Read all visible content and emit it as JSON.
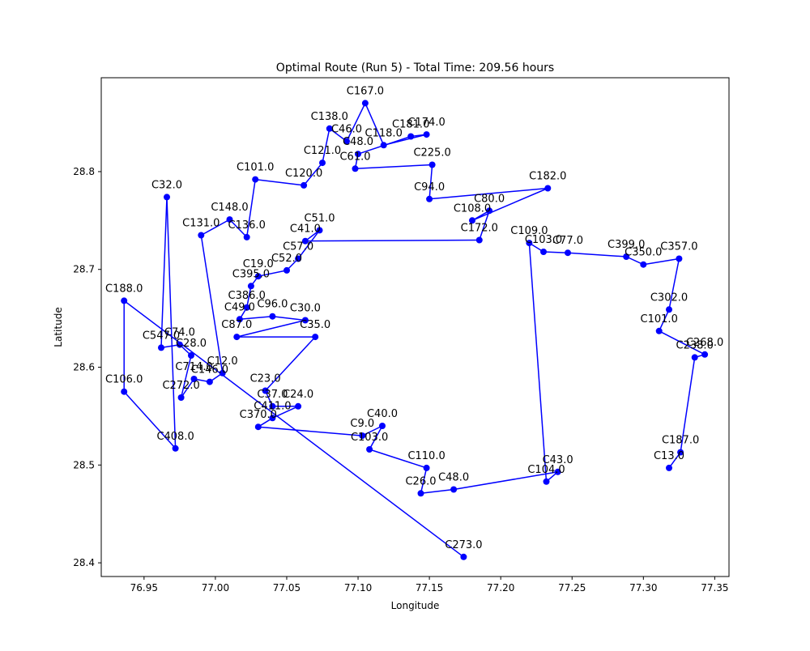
{
  "chart_data": {
    "type": "scatter",
    "title": "Optimal Route (Run 5) - Total Time: 209.56 hours",
    "xlabel": "Longitude",
    "ylabel": "Latitude",
    "xlim": [
      76.92,
      77.36
    ],
    "ylim": [
      28.386,
      28.896
    ],
    "x_ticks": [
      76.95,
      77.0,
      77.05,
      77.1,
      77.15,
      77.2,
      77.25,
      77.3,
      77.35
    ],
    "x_tick_labels": [
      "76.95",
      "77.00",
      "77.05",
      "77.10",
      "77.15",
      "77.20",
      "77.25",
      "77.30",
      "77.35"
    ],
    "y_ticks": [
      28.4,
      28.5,
      28.6,
      28.7,
      28.8
    ],
    "y_tick_labels": [
      "28.4",
      "28.5",
      "28.6",
      "28.7",
      "28.8"
    ],
    "grid": false,
    "legend": "none",
    "series_color": "#0000ff",
    "marker": "filled circle",
    "line": "solid, connects points in route order",
    "points": [
      {
        "label": "C273.0",
        "x": 77.174,
        "y": 28.406
      },
      {
        "label": "C188.0",
        "x": 76.936,
        "y": 28.668
      },
      {
        "label": "C106.0",
        "x": 76.936,
        "y": 28.575
      },
      {
        "label": "C408.0",
        "x": 76.972,
        "y": 28.517
      },
      {
        "label": "C32.0",
        "x": 76.966,
        "y": 28.774
      },
      {
        "label": "C547.0",
        "x": 76.962,
        "y": 28.62
      },
      {
        "label": "C74.0",
        "x": 76.975,
        "y": 28.623
      },
      {
        "label": "C28.0",
        "x": 76.983,
        "y": 28.612
      },
      {
        "label": "C272.0",
        "x": 76.976,
        "y": 28.569
      },
      {
        "label": "C714.0",
        "x": 76.985,
        "y": 28.588
      },
      {
        "label": "C146.0",
        "x": 76.996,
        "y": 28.585
      },
      {
        "label": "C12.0",
        "x": 77.005,
        "y": 28.594
      },
      {
        "label": "C131.0",
        "x": 76.99,
        "y": 28.735
      },
      {
        "label": "C148.0",
        "x": 77.01,
        "y": 28.751
      },
      {
        "label": "C136.0",
        "x": 77.022,
        "y": 28.733
      },
      {
        "label": "C101.0",
        "x": 77.028,
        "y": 28.792
      },
      {
        "label": "C120.0",
        "x": 77.062,
        "y": 28.786
      },
      {
        "label": "C121.0",
        "x": 77.075,
        "y": 28.809
      },
      {
        "label": "C138.0",
        "x": 77.08,
        "y": 28.844
      },
      {
        "label": "C46.0",
        "x": 77.092,
        "y": 28.831
      },
      {
        "label": "C167.0",
        "x": 77.105,
        "y": 28.87
      },
      {
        "label": "C118.0",
        "x": 77.118,
        "y": 28.827
      },
      {
        "label": "C174.0",
        "x": 77.148,
        "y": 28.838
      },
      {
        "label": "C181.0",
        "x": 77.137,
        "y": 28.836
      },
      {
        "label": "C48.0",
        "x": 77.1,
        "y": 28.818
      },
      {
        "label": "C61.0",
        "x": 77.098,
        "y": 28.803
      },
      {
        "label": "C225.0",
        "x": 77.152,
        "y": 28.807
      },
      {
        "label": "C94.0",
        "x": 77.15,
        "y": 28.772
      },
      {
        "label": "C182.0",
        "x": 77.233,
        "y": 28.783
      },
      {
        "label": "C108.0",
        "x": 77.18,
        "y": 28.75
      },
      {
        "label": "C80.0",
        "x": 77.192,
        "y": 28.76
      },
      {
        "label": "C172.0",
        "x": 77.185,
        "y": 28.73
      },
      {
        "label": "C41.0",
        "x": 77.063,
        "y": 28.729
      },
      {
        "label": "C51.0",
        "x": 77.073,
        "y": 28.74
      },
      {
        "label": "C57.0",
        "x": 77.058,
        "y": 28.711
      },
      {
        "label": "C52.0",
        "x": 77.05,
        "y": 28.699
      },
      {
        "label": "C19.0",
        "x": 77.03,
        "y": 28.693
      },
      {
        "label": "C395.0",
        "x": 77.025,
        "y": 28.683
      },
      {
        "label": "C386.0",
        "x": 77.022,
        "y": 28.661
      },
      {
        "label": "C49.0",
        "x": 77.017,
        "y": 28.649
      },
      {
        "label": "C96.0",
        "x": 77.04,
        "y": 28.652
      },
      {
        "label": "C30.0",
        "x": 77.063,
        "y": 28.648
      },
      {
        "label": "C87.0",
        "x": 77.015,
        "y": 28.631
      },
      {
        "label": "C35.0",
        "x": 77.07,
        "y": 28.631
      },
      {
        "label": "C23.0",
        "x": 77.035,
        "y": 28.576
      },
      {
        "label": "C37.0",
        "x": 77.04,
        "y": 28.56
      },
      {
        "label": "C24.0",
        "x": 77.058,
        "y": 28.56
      },
      {
        "label": "C411.0",
        "x": 77.04,
        "y": 28.548
      },
      {
        "label": "C370.0",
        "x": 77.03,
        "y": 28.539
      },
      {
        "label": "C9.0",
        "x": 77.103,
        "y": 28.53
      },
      {
        "label": "C40.0",
        "x": 77.117,
        "y": 28.54
      },
      {
        "label": "C103.0",
        "x": 77.108,
        "y": 28.516
      },
      {
        "label": "C110.0",
        "x": 77.148,
        "y": 28.497
      },
      {
        "label": "C26.0",
        "x": 77.144,
        "y": 28.471
      },
      {
        "label": "C48.0",
        "x": 77.167,
        "y": 28.475
      },
      {
        "label": "C43.0",
        "x": 77.24,
        "y": 28.493
      },
      {
        "label": "C104.0",
        "x": 77.232,
        "y": 28.483
      },
      {
        "label": "C109.0",
        "x": 77.22,
        "y": 28.727
      },
      {
        "label": "C103.0",
        "x": 77.23,
        "y": 28.718
      },
      {
        "label": "C77.0",
        "x": 77.247,
        "y": 28.717
      },
      {
        "label": "C399.0",
        "x": 77.288,
        "y": 28.713
      },
      {
        "label": "C350.0",
        "x": 77.3,
        "y": 28.705
      },
      {
        "label": "C357.0",
        "x": 77.325,
        "y": 28.711
      },
      {
        "label": "C302.0",
        "x": 77.318,
        "y": 28.659
      },
      {
        "label": "C101.0",
        "x": 77.311,
        "y": 28.637
      },
      {
        "label": "C268.0",
        "x": 77.343,
        "y": 28.613
      },
      {
        "label": "C238.0",
        "x": 77.336,
        "y": 28.61
      },
      {
        "label": "C187.0",
        "x": 77.326,
        "y": 28.513
      },
      {
        "label": "C13.0",
        "x": 77.318,
        "y": 28.497
      }
    ],
    "label_note": "Every point carries a small text label 'C<n>.0' placed just above it; the plotted labels in the dense core overlap into an unreadable mass."
  }
}
